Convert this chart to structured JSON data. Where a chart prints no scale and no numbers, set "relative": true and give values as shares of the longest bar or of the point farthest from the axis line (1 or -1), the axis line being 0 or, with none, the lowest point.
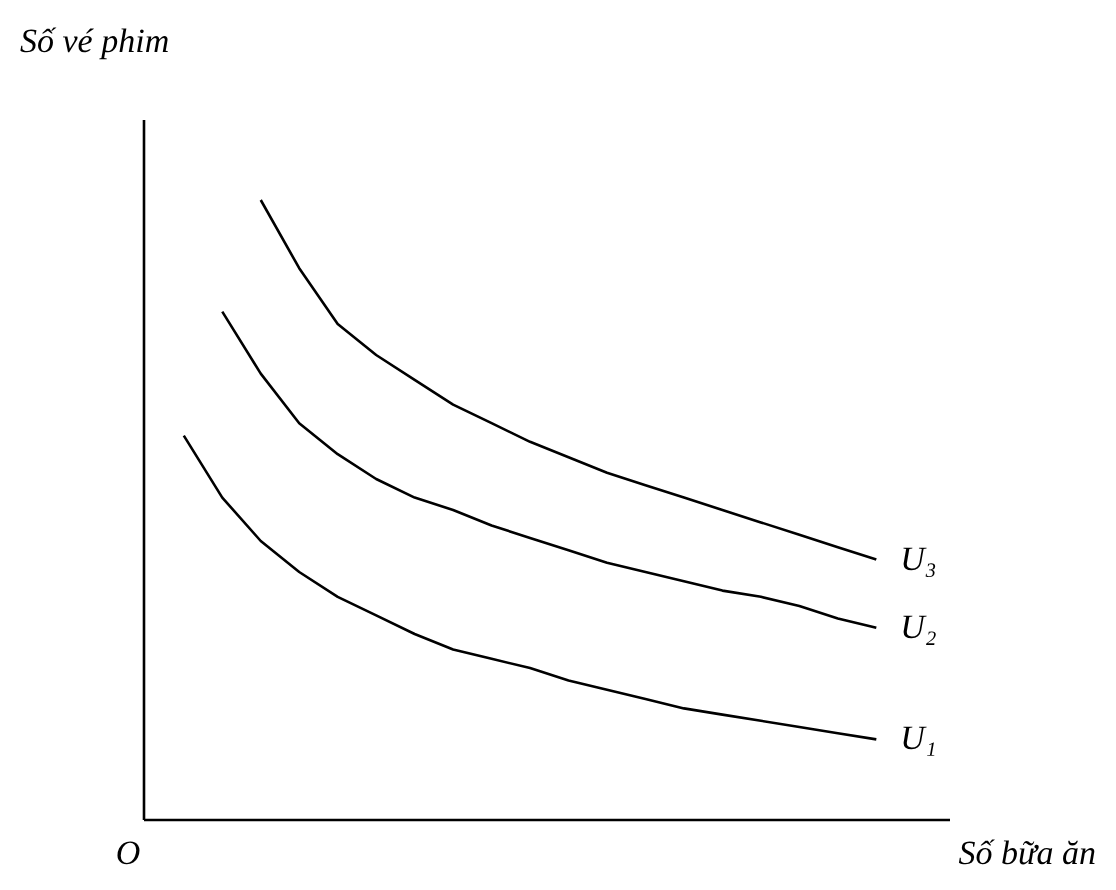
{
  "chart_data": {
    "type": "line",
    "relative": true,
    "xlabel": "Số bữa ăn",
    "ylabel": "Số vé phim",
    "annotations": [
      "O"
    ],
    "legend": false,
    "marker": "none",
    "line_style": "solid",
    "categories": [
      null,
      null,
      null,
      null,
      null,
      null,
      null,
      null,
      null,
      null,
      null,
      null,
      null,
      null,
      null,
      null,
      null,
      null,
      null
    ],
    "series": [
      {
        "name": "U₁",
        "color": "#000000",
        "values": [
          0.62,
          0.52,
          0.45,
          0.4,
          0.36,
          0.33,
          0.3,
          0.275,
          0.26,
          0.245,
          0.225,
          0.21,
          0.195,
          0.18,
          0.17,
          0.16,
          0.15,
          0.14,
          0.13
        ]
      },
      {
        "name": "U₂",
        "color": "#000000",
        "values": [
          null,
          0.82,
          0.72,
          0.64,
          0.59,
          0.55,
          0.52,
          0.5,
          0.475,
          0.455,
          0.435,
          0.415,
          0.4,
          0.385,
          0.37,
          0.36,
          0.345,
          0.325,
          0.31
        ]
      },
      {
        "name": "U₃",
        "color": "#000000",
        "values": [
          null,
          null,
          1,
          0.89,
          0.8,
          0.75,
          0.71,
          0.67,
          0.64,
          0.61,
          0.585,
          0.56,
          0.54,
          0.52,
          0.5,
          0.48,
          0.46,
          0.44,
          0.42
        ]
      }
    ]
  }
}
